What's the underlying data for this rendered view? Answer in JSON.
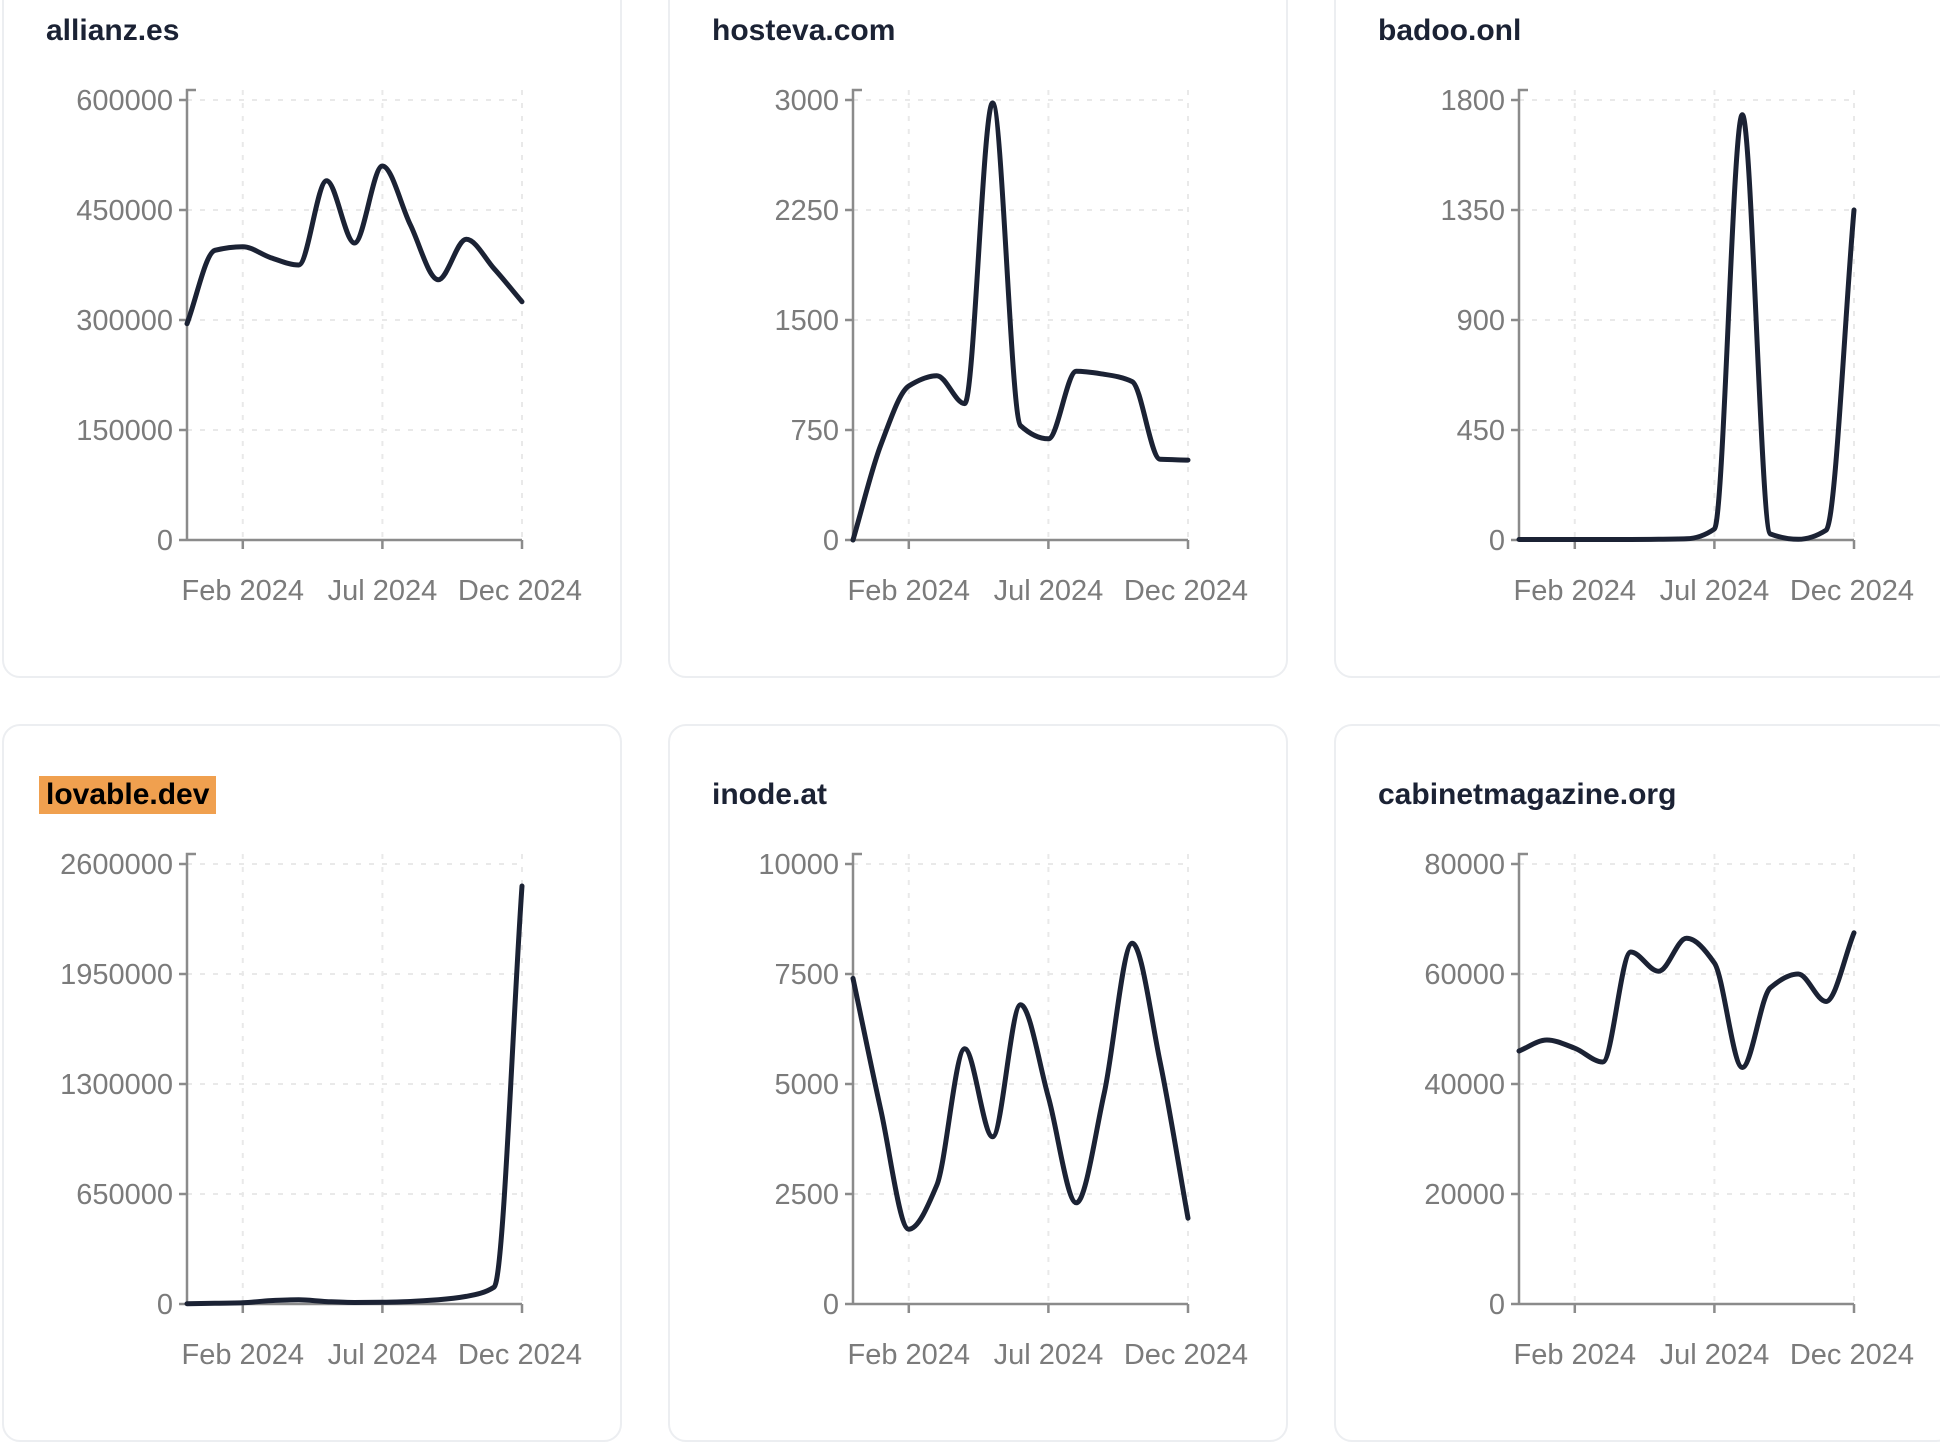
{
  "page": {
    "background": "#ffffff",
    "layout": "3x2-grid-of-line-chart-cards"
  },
  "theme": {
    "line_color": "#1b2234",
    "title_color": "#1b2234",
    "label_color": "#7b7b7b",
    "axis_color": "#8b8b8b",
    "grid_color": "#e9e9e9",
    "card_border": "#eceef1",
    "card_bg": "#ffffff",
    "page_bg": "#ffffff",
    "highlight_bg": "#f0a04f",
    "highlight_text": "#000000"
  },
  "chart_data": [
    {
      "type": "line",
      "title": "allianz.es",
      "highlighted": false,
      "x_months": [
        "Dec 2023",
        "Jan 2024",
        "Feb 2024",
        "Mar 2024",
        "Apr 2024",
        "May 2024",
        "Jun 2024",
        "Jul 2024",
        "Aug 2024",
        "Sep 2024",
        "Oct 2024",
        "Nov 2024",
        "Dec 2024"
      ],
      "values": [
        295000,
        395000,
        400000,
        385000,
        375000,
        490000,
        405000,
        510000,
        430000,
        355000,
        410000,
        370000,
        325000
      ],
      "y_ticks": [
        0,
        150000,
        300000,
        450000,
        600000
      ],
      "ylim": [
        0,
        600000
      ],
      "x_tick_labels": [
        "Feb 2024",
        "Jul 2024",
        "Dec 2024"
      ],
      "x_tick_month_index": [
        2,
        7,
        12
      ],
      "grid": "dashed",
      "legend": false
    },
    {
      "type": "line",
      "title": "hosteva.com",
      "highlighted": false,
      "x_months": [
        "Dec 2023",
        "Jan 2024",
        "Feb 2024",
        "Mar 2024",
        "Apr 2024",
        "May 2024",
        "Jun 2024",
        "Jul 2024",
        "Aug 2024",
        "Sep 2024",
        "Oct 2024",
        "Nov 2024",
        "Dec 2024"
      ],
      "values": [
        0,
        650,
        1050,
        1120,
        930,
        2980,
        780,
        690,
        1150,
        1130,
        1080,
        550,
        545
      ],
      "y_ticks": [
        0,
        750,
        1500,
        2250,
        3000
      ],
      "ylim": [
        0,
        3000
      ],
      "x_tick_labels": [
        "Feb 2024",
        "Jul 2024",
        "Dec 2024"
      ],
      "x_tick_month_index": [
        2,
        7,
        12
      ],
      "grid": "dashed",
      "legend": false
    },
    {
      "type": "line",
      "title": "badoo.onl",
      "highlighted": false,
      "x_months": [
        "Dec 2023",
        "Jan 2024",
        "Feb 2024",
        "Mar 2024",
        "Apr 2024",
        "May 2024",
        "Jun 2024",
        "Jul 2024",
        "Aug 2024",
        "Sep 2024",
        "Oct 2024",
        "Nov 2024",
        "Dec 2024"
      ],
      "values": [
        2,
        2,
        2,
        2,
        2,
        3,
        5,
        45,
        1740,
        25,
        3,
        40,
        1350
      ],
      "y_ticks": [
        0,
        450,
        900,
        1350,
        1800
      ],
      "ylim": [
        0,
        1800
      ],
      "x_tick_labels": [
        "Feb 2024",
        "Jul 2024",
        "Dec 2024"
      ],
      "x_tick_month_index": [
        2,
        7,
        12
      ],
      "grid": "dashed",
      "legend": false
    },
    {
      "type": "line",
      "title": "lovable.dev",
      "highlighted": true,
      "x_months": [
        "Dec 2023",
        "Jan 2024",
        "Feb 2024",
        "Mar 2024",
        "Apr 2024",
        "May 2024",
        "Jun 2024",
        "Jul 2024",
        "Aug 2024",
        "Sep 2024",
        "Oct 2024",
        "Nov 2024",
        "Dec 2024"
      ],
      "values": [
        2000,
        4000,
        7000,
        20000,
        25000,
        14000,
        9000,
        10000,
        15000,
        25000,
        45000,
        100000,
        2470000
      ],
      "y_ticks": [
        0,
        650000,
        1300000,
        1950000,
        2600000
      ],
      "ylim": [
        0,
        2600000
      ],
      "x_tick_labels": [
        "Feb 2024",
        "Jul 2024",
        "Dec 2024"
      ],
      "x_tick_month_index": [
        2,
        7,
        12
      ],
      "grid": "dashed",
      "legend": false
    },
    {
      "type": "line",
      "title": "inode.at",
      "highlighted": false,
      "x_months": [
        "Dec 2023",
        "Jan 2024",
        "Feb 2024",
        "Mar 2024",
        "Apr 2024",
        "May 2024",
        "Jun 2024",
        "Jul 2024",
        "Aug 2024",
        "Sep 2024",
        "Oct 2024",
        "Nov 2024",
        "Dec 2024"
      ],
      "values": [
        7400,
        4400,
        1700,
        2700,
        5800,
        3800,
        6800,
        4700,
        2300,
        4800,
        8200,
        5500,
        1950
      ],
      "y_ticks": [
        0,
        2500,
        5000,
        7500,
        10000
      ],
      "ylim": [
        0,
        10000
      ],
      "x_tick_labels": [
        "Feb 2024",
        "Jul 2024",
        "Dec 2024"
      ],
      "x_tick_month_index": [
        2,
        7,
        12
      ],
      "grid": "dashed",
      "legend": false
    },
    {
      "type": "line",
      "title": "cabinetmagazine.org",
      "highlighted": false,
      "x_months": [
        "Dec 2023",
        "Jan 2024",
        "Feb 2024",
        "Mar 2024",
        "Apr 2024",
        "May 2024",
        "Jun 2024",
        "Jul 2024",
        "Aug 2024",
        "Sep 2024",
        "Oct 2024",
        "Nov 2024",
        "Dec 2024"
      ],
      "values": [
        46000,
        48000,
        46500,
        44000,
        64000,
        60500,
        66500,
        62000,
        43000,
        57500,
        60000,
        55000,
        67500
      ],
      "y_ticks": [
        0,
        20000,
        40000,
        60000,
        80000
      ],
      "ylim": [
        0,
        80000
      ],
      "x_tick_labels": [
        "Feb 2024",
        "Jul 2024",
        "Dec 2024"
      ],
      "x_tick_month_index": [
        2,
        7,
        12
      ],
      "grid": "dashed",
      "legend": false
    }
  ]
}
